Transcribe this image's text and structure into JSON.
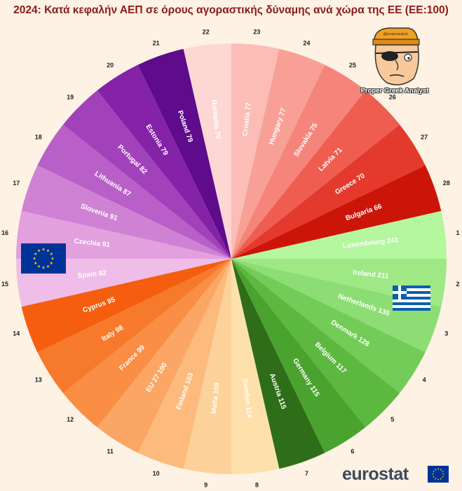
{
  "title": "2024: Κατά κεφαλήν ΑΕΠ σε όρους αγοραστικής δύναμης ανά χώρα της ΕΕ (ΕΕ:100)",
  "branding": {
    "mascot_caption": "Proper Greek Analyst",
    "mascot_hat_text": "@properanalyst",
    "source_logo": "eurostat"
  },
  "chart_data": {
    "type": "pie",
    "title": "2024: Κατά κεφαλήν ΑΕΠ σε όρους αγοραστικής δύναμης ανά χώρα της ΕΕ (ΕΕ:100)",
    "slices": [
      {
        "rank": 1,
        "label": "Luxembourg",
        "value": 241,
        "color": "#b4f79e"
      },
      {
        "rank": 2,
        "label": "Ireland",
        "value": 211,
        "color": "#9ee886"
      },
      {
        "rank": 3,
        "label": "Netherlands",
        "value": 135,
        "color": "#8cde74"
      },
      {
        "rank": 4,
        "label": "Denmark",
        "value": 128,
        "color": "#74cc58"
      },
      {
        "rank": 5,
        "label": "Belgium",
        "value": 117,
        "color": "#5db83f"
      },
      {
        "rank": 6,
        "label": "Germany",
        "value": 115,
        "color": "#4aa32f"
      },
      {
        "rank": 7,
        "label": "Austria",
        "value": 115,
        "color": "#2f6e18"
      },
      {
        "rank": 8,
        "label": "Sweden",
        "value": 114,
        "color": "#fde0aa"
      },
      {
        "rank": 9,
        "label": "Malta",
        "value": 109,
        "color": "#fdd19a"
      },
      {
        "rank": 10,
        "label": "Finland",
        "value": 103,
        "color": "#fcba7c"
      },
      {
        "rank": 11,
        "label": "EU 27",
        "value": 100,
        "color": "#fba664"
      },
      {
        "rank": 12,
        "label": "France",
        "value": 99,
        "color": "#f98e44"
      },
      {
        "rank": 13,
        "label": "Italy",
        "value": 98,
        "color": "#f77a2c"
      },
      {
        "rank": 14,
        "label": "Cyprus",
        "value": 95,
        "color": "#f45e0e"
      },
      {
        "rank": 15,
        "label": "Spain",
        "value": 92,
        "color": "#f0bde9"
      },
      {
        "rank": 16,
        "label": "Czechia",
        "value": 91,
        "color": "#e2a0df"
      },
      {
        "rank": 17,
        "label": "Slovenia",
        "value": 91,
        "color": "#cf82d4"
      },
      {
        "rank": 18,
        "label": "Lithuania",
        "value": 87,
        "color": "#b860c8"
      },
      {
        "rank": 19,
        "label": "Portugal",
        "value": 82,
        "color": "#a242bb"
      },
      {
        "rank": 20,
        "label": "Estonia",
        "value": 79,
        "color": "#8422a8"
      },
      {
        "rank": 21,
        "label": "Poland",
        "value": 79,
        "color": "#5e0b8c"
      },
      {
        "rank": 22,
        "label": "Romania",
        "value": 79,
        "color": "#fdd7d4"
      },
      {
        "rank": 23,
        "label": "Croatia",
        "value": 77,
        "color": "#fbbdb6"
      },
      {
        "rank": 24,
        "label": "Hungary",
        "value": 77,
        "color": "#f8a096"
      },
      {
        "rank": 25,
        "label": "Slovakia",
        "value": 75,
        "color": "#f5857a"
      },
      {
        "rank": 26,
        "label": "Latvia",
        "value": 71,
        "color": "#ef5d51"
      },
      {
        "rank": 27,
        "label": "Greece",
        "value": 70,
        "color": "#e43a2d"
      },
      {
        "rank": 28,
        "label": "Bulgaria",
        "value": 66,
        "color": "#cc1509"
      }
    ],
    "legend": "none",
    "label_format": "{label} {value}"
  },
  "colors": {
    "background": "#fdf2e3",
    "title": "#8b1a1a",
    "eu_blue": "#003399",
    "eu_star": "#ffcc00",
    "greek_blue": "#0d5eaf"
  }
}
